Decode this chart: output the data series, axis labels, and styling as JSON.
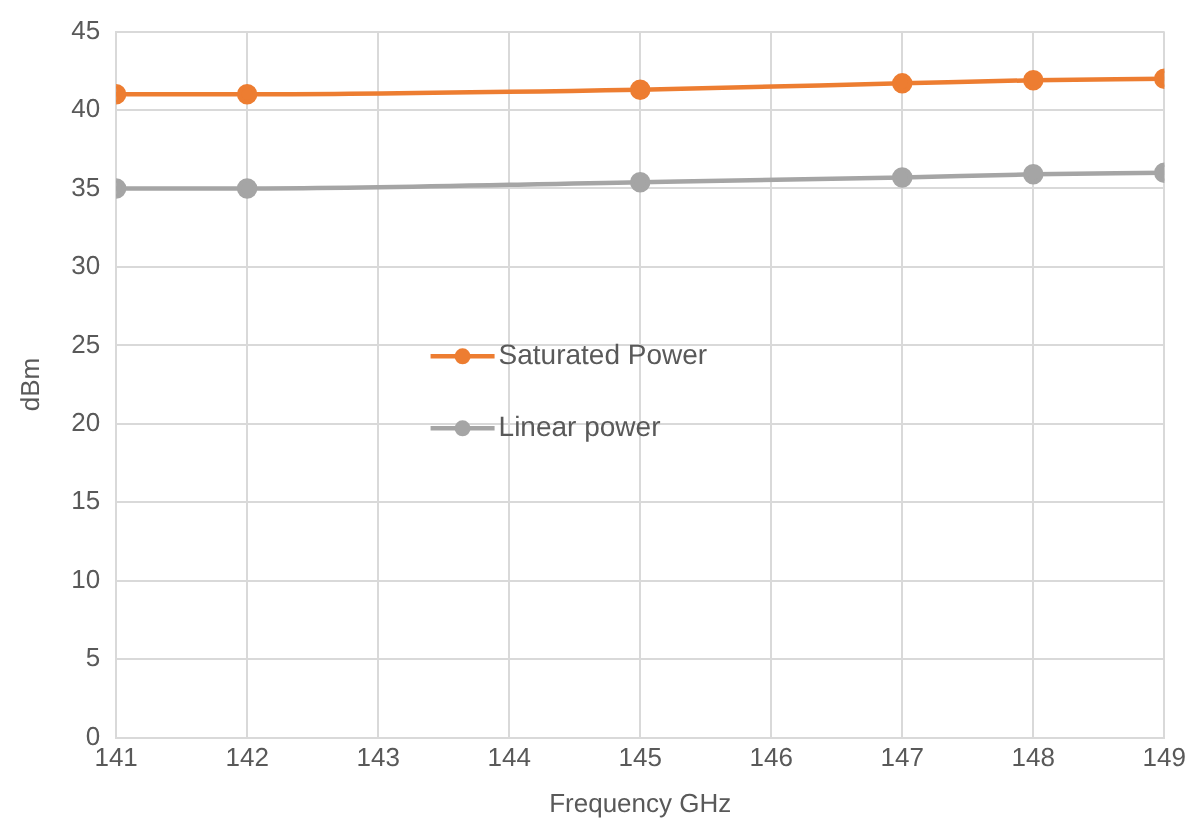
{
  "chart_data": {
    "type": "line",
    "xlabel": "Frequency GHz",
    "ylabel": "dBm",
    "x": [
      141,
      142,
      145,
      147,
      148,
      149
    ],
    "series": [
      {
        "name": "Saturated Power",
        "color": "#ed7d31",
        "values": [
          41.0,
          41.0,
          41.3,
          41.7,
          41.9,
          42.0
        ]
      },
      {
        "name": "Linear power",
        "color": "#a5a5a5",
        "values": [
          35.0,
          35.0,
          35.4,
          35.7,
          35.9,
          36.0
        ]
      }
    ],
    "xlim": [
      141,
      149
    ],
    "xticks": [
      141,
      142,
      143,
      144,
      145,
      146,
      147,
      148,
      149
    ],
    "ylim": [
      0,
      45
    ],
    "yticks": [
      0,
      5,
      10,
      15,
      20,
      25,
      30,
      35,
      40,
      45
    ],
    "grid": true,
    "legend": "center left",
    "marker": "circle",
    "line_style": "solid"
  }
}
